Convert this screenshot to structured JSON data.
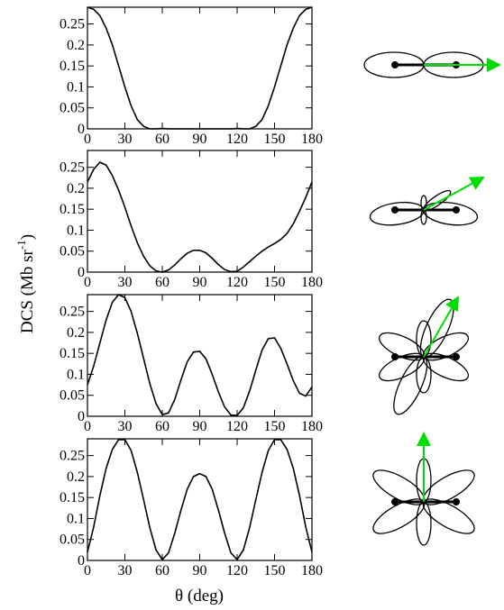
{
  "x_label": "θ (deg)",
  "y_label": "DCS (Mb sr",
  "y_label_sup": "-1",
  "y_label_end": ")",
  "chart_data": [
    {
      "type": "line",
      "color": "#000000",
      "xlim": [
        0,
        180
      ],
      "ylim": [
        0,
        0.29
      ],
      "xticks": [
        0,
        30,
        60,
        90,
        120,
        150,
        180
      ],
      "yticks": [
        0,
        0.05,
        0.1,
        0.15,
        0.2,
        0.25
      ],
      "x": [
        0,
        5,
        10,
        15,
        20,
        25,
        30,
        35,
        40,
        45,
        50,
        55,
        60,
        65,
        70,
        75,
        80,
        85,
        90,
        95,
        100,
        105,
        110,
        115,
        120,
        125,
        130,
        135,
        140,
        145,
        150,
        155,
        160,
        165,
        170,
        175,
        180
      ],
      "values": [
        0.29,
        0.285,
        0.27,
        0.24,
        0.2,
        0.15,
        0.1,
        0.055,
        0.022,
        0.006,
        0,
        0,
        0.001,
        0,
        0,
        0,
        0,
        0,
        0,
        0,
        0,
        0,
        0,
        0,
        0.001,
        0,
        0,
        0.006,
        0.022,
        0.055,
        0.1,
        0.15,
        0.2,
        0.24,
        0.27,
        0.285,
        0.29
      ]
    },
    {
      "type": "line",
      "color": "#000000",
      "xlim": [
        0,
        180
      ],
      "ylim": [
        0,
        0.29
      ],
      "xticks": [
        0,
        30,
        60,
        90,
        120,
        150,
        180
      ],
      "yticks": [
        0,
        0.05,
        0.1,
        0.15,
        0.2,
        0.25
      ],
      "x": [
        0,
        5,
        10,
        15,
        20,
        25,
        30,
        35,
        40,
        45,
        50,
        55,
        60,
        65,
        70,
        75,
        80,
        85,
        90,
        95,
        100,
        105,
        110,
        115,
        120,
        125,
        130,
        135,
        140,
        145,
        150,
        155,
        160,
        165,
        170,
        175,
        180
      ],
      "values": [
        0.215,
        0.245,
        0.262,
        0.255,
        0.23,
        0.195,
        0.155,
        0.11,
        0.07,
        0.038,
        0.015,
        0.003,
        0,
        0.005,
        0.017,
        0.032,
        0.045,
        0.052,
        0.052,
        0.046,
        0.033,
        0.018,
        0.006,
        0.001,
        0.002,
        0.012,
        0.025,
        0.038,
        0.05,
        0.06,
        0.068,
        0.078,
        0.092,
        0.115,
        0.145,
        0.178,
        0.215
      ]
    },
    {
      "type": "line",
      "color": "#000000",
      "xlim": [
        0,
        180
      ],
      "ylim": [
        0,
        0.29
      ],
      "xticks": [
        0,
        30,
        60,
        90,
        120,
        150,
        180
      ],
      "yticks": [
        0,
        0.05,
        0.1,
        0.15,
        0.2,
        0.25
      ],
      "x": [
        0,
        5,
        10,
        15,
        20,
        25,
        30,
        35,
        40,
        45,
        50,
        55,
        60,
        65,
        70,
        75,
        80,
        85,
        90,
        95,
        100,
        105,
        110,
        115,
        120,
        125,
        130,
        135,
        140,
        145,
        150,
        155,
        160,
        165,
        170,
        175,
        180
      ],
      "values": [
        0.075,
        0.12,
        0.175,
        0.23,
        0.272,
        0.29,
        0.283,
        0.25,
        0.198,
        0.138,
        0.078,
        0.03,
        0.004,
        0.008,
        0.04,
        0.087,
        0.13,
        0.153,
        0.155,
        0.137,
        0.1,
        0.058,
        0.022,
        0.003,
        0.002,
        0.02,
        0.06,
        0.11,
        0.158,
        0.185,
        0.187,
        0.162,
        0.125,
        0.085,
        0.055,
        0.048,
        0.07
      ]
    },
    {
      "type": "line",
      "color": "#000000",
      "xlim": [
        0,
        180
      ],
      "ylim": [
        0,
        0.29
      ],
      "xticks": [
        0,
        30,
        60,
        90,
        120,
        150,
        180
      ],
      "yticks": [
        0,
        0.05,
        0.1,
        0.15,
        0.2,
        0.25
      ],
      "x": [
        0,
        5,
        10,
        15,
        20,
        25,
        30,
        35,
        40,
        45,
        50,
        55,
        60,
        65,
        70,
        75,
        80,
        85,
        90,
        95,
        100,
        105,
        110,
        115,
        120,
        125,
        130,
        135,
        140,
        145,
        150,
        155,
        160,
        165,
        170,
        175,
        180
      ],
      "values": [
        0.02,
        0.08,
        0.155,
        0.22,
        0.265,
        0.288,
        0.288,
        0.262,
        0.21,
        0.145,
        0.078,
        0.025,
        0.002,
        0.018,
        0.065,
        0.12,
        0.17,
        0.2,
        0.207,
        0.2,
        0.17,
        0.12,
        0.065,
        0.018,
        0.002,
        0.025,
        0.078,
        0.145,
        0.21,
        0.262,
        0.288,
        0.288,
        0.265,
        0.22,
        0.155,
        0.08,
        0.02
      ]
    }
  ]
}
